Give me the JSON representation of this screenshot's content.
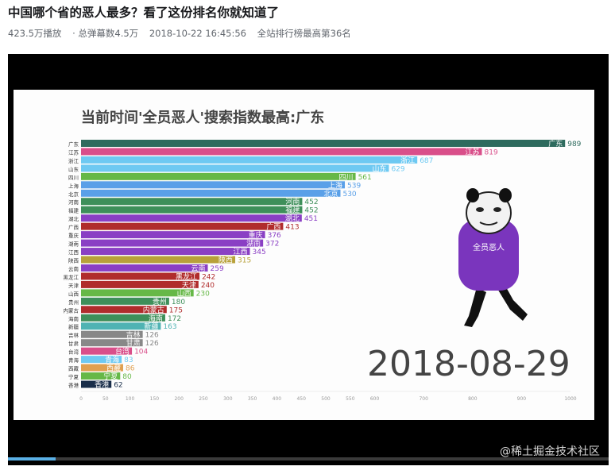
{
  "video": {
    "title": "中国哪个省的恶人最多？看了这份排名你就知道了",
    "stats": {
      "plays": "423.5万播放",
      "danmaku": "· 总弹幕数4.5万",
      "date": "2018-10-22 16:45:56",
      "rank": "全站排行榜最高第36名"
    },
    "progress_fraction": 0.08,
    "watermark": "@稀土掘金技术社区"
  },
  "chart_data": {
    "type": "bar",
    "orientation": "horizontal",
    "title": "当前时间'全员恶人'搜索指数最高:广东",
    "date_label": "2018-08-29",
    "sticker_caption": "全员恶人",
    "xlim": [
      0,
      1000
    ],
    "x_ticks": [
      0,
      50,
      100,
      150,
      200,
      250,
      300,
      350,
      400,
      450,
      500,
      550,
      600,
      700,
      800,
      900,
      1000
    ],
    "rows": [
      {
        "name": "广东",
        "value": 989,
        "color": "#2e6b5e"
      },
      {
        "name": "江苏",
        "value": 819,
        "color": "#d94f8a"
      },
      {
        "name": "浙江",
        "value": 687,
        "color": "#6ec9f2"
      },
      {
        "name": "山东",
        "value": 629,
        "color": "#6ec9f2"
      },
      {
        "name": "四川",
        "value": 561,
        "color": "#66b847"
      },
      {
        "name": "上海",
        "value": 539,
        "color": "#5aa0e8"
      },
      {
        "name": "北京",
        "value": 530,
        "color": "#5aa0e8"
      },
      {
        "name": "河南",
        "value": 452,
        "color": "#3e8f5a"
      },
      {
        "name": "福建",
        "value": 452,
        "color": "#3e8f5a"
      },
      {
        "name": "湖北",
        "value": 451,
        "color": "#8a3fc4"
      },
      {
        "name": "广西",
        "value": 413,
        "color": "#b02c2c"
      },
      {
        "name": "重庆",
        "value": 376,
        "color": "#8a3fc4"
      },
      {
        "name": "湖南",
        "value": 372,
        "color": "#8a3fc4"
      },
      {
        "name": "江西",
        "value": 345,
        "color": "#8a3fc4"
      },
      {
        "name": "陕西",
        "value": 315,
        "color": "#b8a13a"
      },
      {
        "name": "云南",
        "value": 259,
        "color": "#8a3fc4"
      },
      {
        "name": "黑龙江",
        "value": 242,
        "color": "#b02c2c"
      },
      {
        "name": "天津",
        "value": 240,
        "color": "#b02c2c"
      },
      {
        "name": "山西",
        "value": 230,
        "color": "#66b847"
      },
      {
        "name": "贵州",
        "value": 180,
        "color": "#3e8f5a"
      },
      {
        "name": "内蒙古",
        "value": 175,
        "color": "#b02c2c"
      },
      {
        "name": "海南",
        "value": 172,
        "color": "#3e8f5a"
      },
      {
        "name": "新疆",
        "value": 163,
        "color": "#4fb3b3"
      },
      {
        "name": "吉林",
        "value": 126,
        "color": "#888888"
      },
      {
        "name": "甘肃",
        "value": 126,
        "color": "#888888"
      },
      {
        "name": "台湾",
        "value": 104,
        "color": "#d94f8a"
      },
      {
        "name": "青海",
        "value": 83,
        "color": "#6ec9f2"
      },
      {
        "name": "西藏",
        "value": 86,
        "color": "#e0a050"
      },
      {
        "name": "宁夏",
        "value": 80,
        "color": "#66b847"
      },
      {
        "name": "香港",
        "value": 62,
        "color": "#1a2e4a"
      }
    ]
  }
}
